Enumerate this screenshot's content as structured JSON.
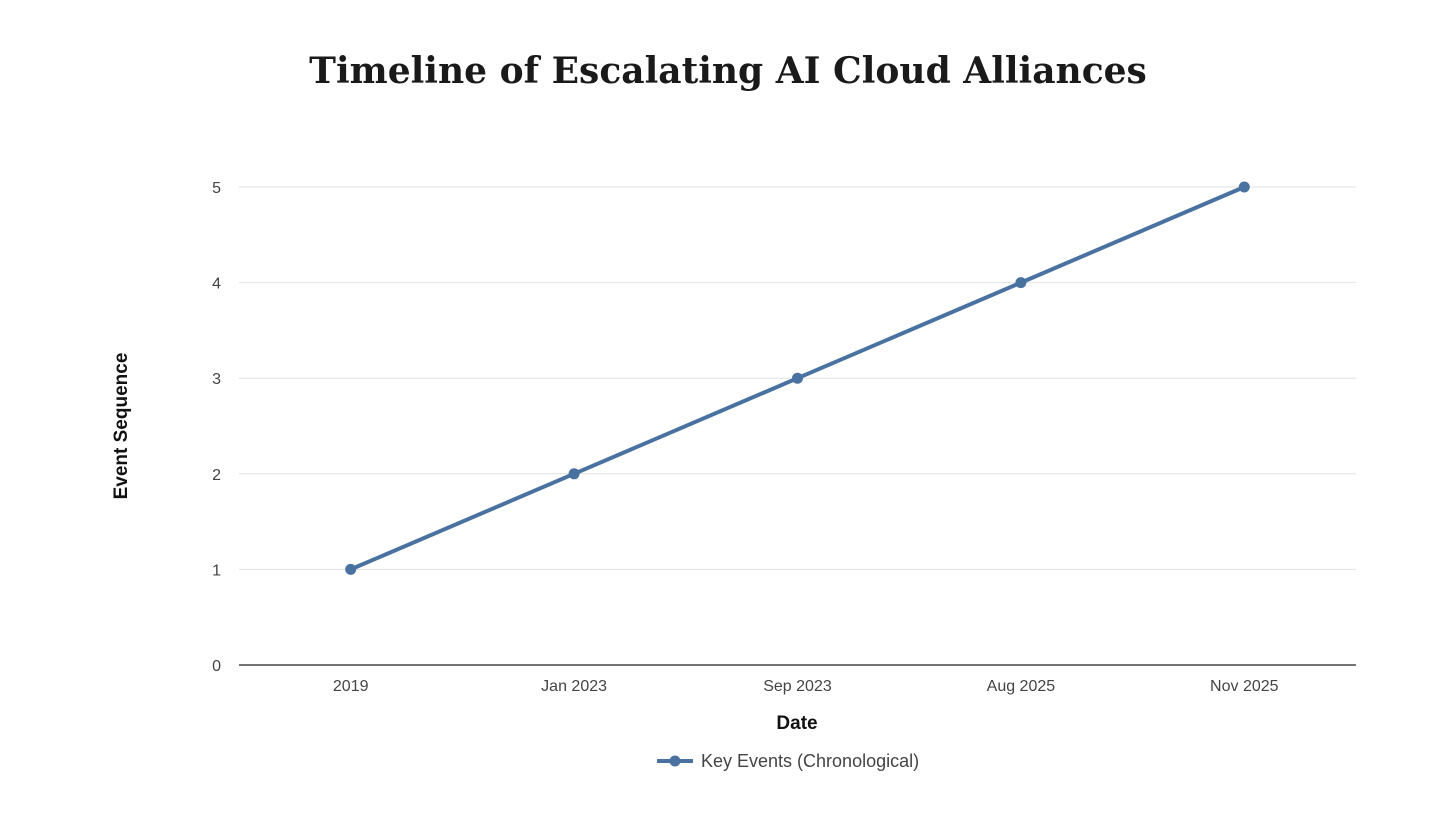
{
  "chart_data": {
    "type": "line",
    "title": "Timeline of Escalating AI Cloud Alliances",
    "xlabel": "Date",
    "ylabel": "Event Sequence",
    "categories": [
      "2019",
      "Jan 2023",
      "Sep 2023",
      "Aug 2025",
      "Nov 2025"
    ],
    "series": [
      {
        "name": "Key Events (Chronological)",
        "values": [
          1,
          2,
          3,
          4,
          5
        ],
        "color": "#4a72a0"
      }
    ],
    "ylim": [
      0,
      5
    ],
    "yticks": [
      0,
      1,
      2,
      3,
      4,
      5
    ],
    "grid": true,
    "legend": "bottom-center"
  }
}
